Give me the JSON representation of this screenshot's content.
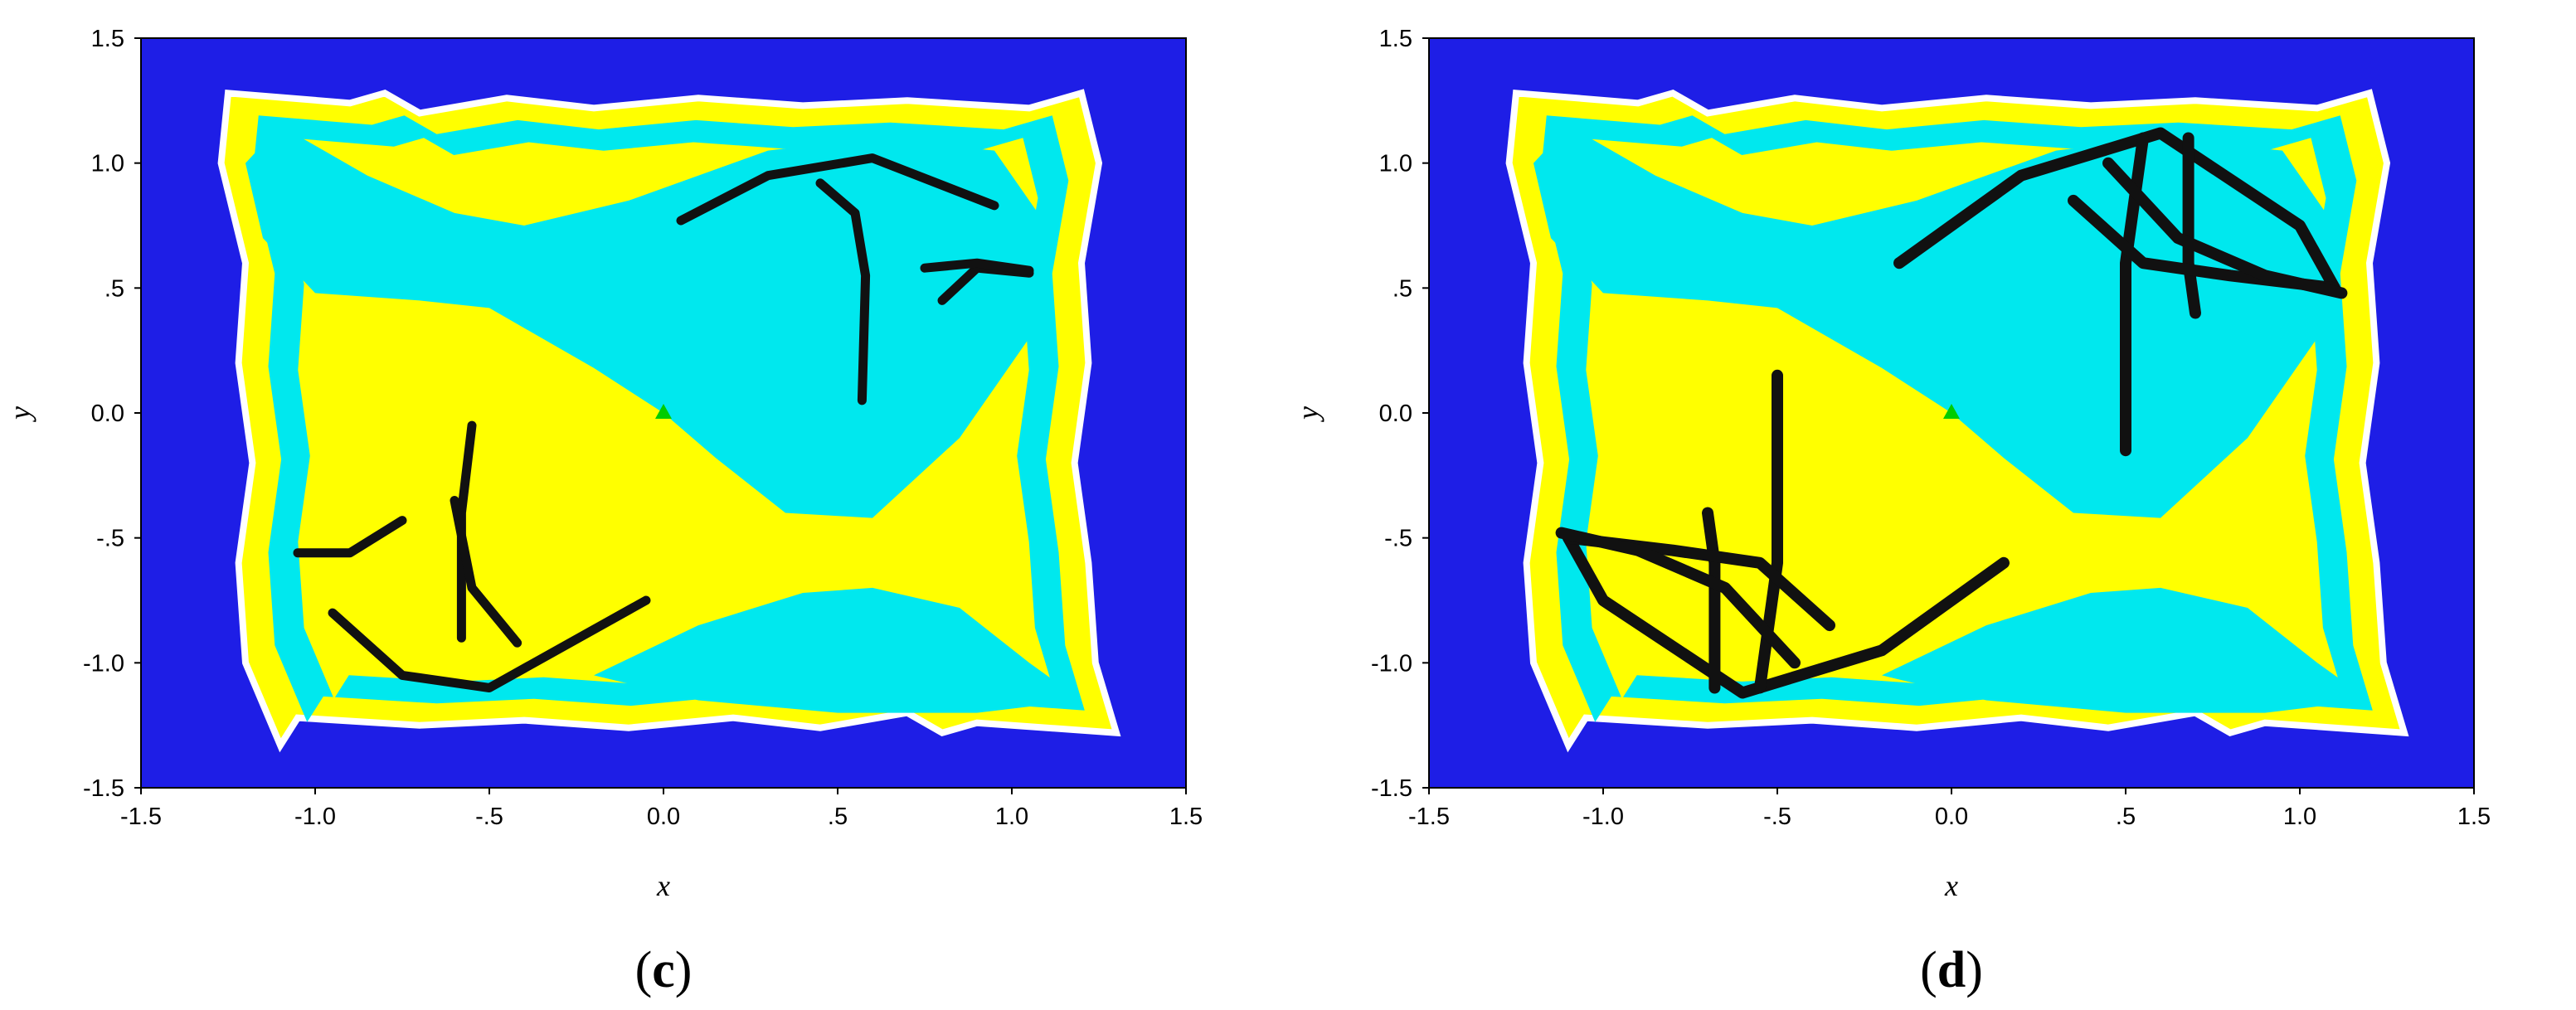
{
  "chart_data": [
    {
      "type": "scatter",
      "panel_label": "c",
      "xlabel": "x",
      "ylabel": "y",
      "xlim": [
        -1.5,
        1.5
      ],
      "ylim": [
        -1.5,
        1.5
      ],
      "x_ticks": [
        -1.5,
        -1.0,
        -0.5,
        0.0,
        0.5,
        1.0,
        1.5
      ],
      "x_tick_labels": [
        "-1.5",
        "-1.0",
        "-.5",
        "0.0",
        ".5",
        "1.0",
        "1.5"
      ],
      "y_ticks": [
        1.5,
        1.0,
        0.5,
        0.0,
        -0.5,
        -1.0,
        -1.5
      ],
      "y_tick_labels": [
        "1.5",
        "1.0",
        ".5",
        "0.0",
        "-.5",
        "-1.0",
        "-1.5"
      ],
      "colors": {
        "background_basin": "#1e1ee6",
        "basin_upper": "#00e8ee",
        "basin_lower": "#ffff00",
        "boundary": "#ffffff",
        "attractor": "#111111",
        "marker": "#00cc00"
      },
      "marker_point": [
        0.0,
        0.0
      ],
      "attractor_curves": [
        [
          [
            0.05,
            0.77
          ],
          [
            0.3,
            0.95
          ],
          [
            0.6,
            1.02
          ],
          [
            0.95,
            0.83
          ]
        ],
        [
          [
            0.45,
            0.92
          ],
          [
            0.55,
            0.8
          ],
          [
            0.58,
            0.55
          ],
          [
            0.57,
            0.05
          ]
        ],
        [
          [
            0.8,
            0.45
          ],
          [
            0.9,
            0.58
          ],
          [
            1.05,
            0.56
          ]
        ],
        [
          [
            0.75,
            0.58
          ],
          [
            0.9,
            0.6
          ],
          [
            1.05,
            0.57
          ]
        ],
        [
          [
            -1.05,
            -0.56
          ],
          [
            -0.9,
            -0.56
          ],
          [
            -0.75,
            -0.43
          ]
        ],
        [
          [
            -0.55,
            -0.05
          ],
          [
            -0.58,
            -0.4
          ],
          [
            -0.58,
            -0.9
          ]
        ],
        [
          [
            -0.6,
            -0.35
          ],
          [
            -0.55,
            -0.7
          ],
          [
            -0.42,
            -0.92
          ]
        ],
        [
          [
            -0.95,
            -0.8
          ],
          [
            -0.75,
            -1.05
          ],
          [
            -0.5,
            -1.1
          ],
          [
            -0.05,
            -0.75
          ]
        ]
      ]
    },
    {
      "type": "scatter",
      "panel_label": "d",
      "xlabel": "x",
      "ylabel": "y",
      "xlim": [
        -1.5,
        1.5
      ],
      "ylim": [
        -1.5,
        1.5
      ],
      "x_ticks": [
        -1.5,
        -1.0,
        -0.5,
        0.0,
        0.5,
        1.0,
        1.5
      ],
      "x_tick_labels": [
        "-1.5",
        "-1.0",
        "-.5",
        "0.0",
        ".5",
        "1.0",
        "1.5"
      ],
      "y_ticks": [
        1.5,
        1.0,
        0.5,
        0.0,
        -0.5,
        -1.0,
        -1.5
      ],
      "y_tick_labels": [
        "1.5",
        "1.0",
        ".5",
        "0.0",
        "-.5",
        "-1.0",
        "-1.5"
      ],
      "colors": {
        "background_basin": "#1e1ee6",
        "basin_upper": "#00e8ee",
        "basin_lower": "#ffff00",
        "boundary": "#ffffff",
        "attractor": "#111111",
        "marker": "#00cc00"
      },
      "marker_point": [
        0.0,
        0.0
      ],
      "attractor_curves": [
        [
          [
            -0.15,
            0.6
          ],
          [
            0.2,
            0.95
          ],
          [
            0.6,
            1.12
          ],
          [
            1.0,
            0.75
          ],
          [
            1.1,
            0.5
          ]
        ],
        [
          [
            0.55,
            1.1
          ],
          [
            0.5,
            0.6
          ],
          [
            0.5,
            -0.15
          ]
        ],
        [
          [
            0.68,
            1.1
          ],
          [
            0.68,
            0.6
          ],
          [
            0.7,
            0.4
          ]
        ],
        [
          [
            0.35,
            0.85
          ],
          [
            0.55,
            0.6
          ],
          [
            0.8,
            0.55
          ],
          [
            1.1,
            0.5
          ]
        ],
        [
          [
            0.45,
            1.0
          ],
          [
            0.65,
            0.7
          ],
          [
            0.9,
            0.55
          ],
          [
            1.12,
            0.48
          ]
        ],
        [
          [
            0.15,
            -0.6
          ],
          [
            -0.2,
            -0.95
          ],
          [
            -0.6,
            -1.12
          ],
          [
            -1.0,
            -0.75
          ],
          [
            -1.1,
            -0.5
          ]
        ],
        [
          [
            -0.55,
            -1.1
          ],
          [
            -0.5,
            -0.6
          ],
          [
            -0.5,
            0.15
          ]
        ],
        [
          [
            -0.68,
            -1.1
          ],
          [
            -0.68,
            -0.6
          ],
          [
            -0.7,
            -0.4
          ]
        ],
        [
          [
            -0.35,
            -0.85
          ],
          [
            -0.55,
            -0.6
          ],
          [
            -0.8,
            -0.55
          ],
          [
            -1.1,
            -0.5
          ]
        ],
        [
          [
            -0.45,
            -1.0
          ],
          [
            -0.65,
            -0.7
          ],
          [
            -0.9,
            -0.55
          ],
          [
            -1.12,
            -0.48
          ]
        ]
      ]
    }
  ]
}
